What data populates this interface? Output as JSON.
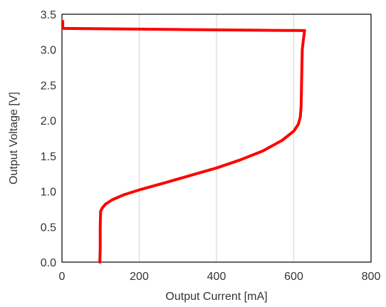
{
  "chart_data": {
    "type": "line",
    "title": "",
    "xlabel": "Output Current [mA]",
    "ylabel": "Output Voltage [V]",
    "xlim": [
      0,
      800
    ],
    "ylim": [
      0,
      3.5
    ],
    "x_ticks": [
      0,
      200,
      400,
      600,
      800
    ],
    "y_ticks": [
      0.0,
      0.5,
      1.0,
      1.5,
      2.0,
      2.5,
      3.0,
      3.5
    ],
    "x_tick_labels": [
      "0",
      "200",
      "400",
      "600",
      "800"
    ],
    "y_tick_labels": [
      "0.0",
      "0.5",
      "1.0",
      "1.5",
      "2.0",
      "2.5",
      "3.0",
      "3.5"
    ],
    "grid": "vertical",
    "legend": "none",
    "series": [
      {
        "color": "#ff0000",
        "points": [
          [
            2,
            3.4
          ],
          [
            2,
            3.3
          ],
          [
            100,
            3.295
          ],
          [
            300,
            3.285
          ],
          [
            500,
            3.275
          ],
          [
            628,
            3.27
          ],
          [
            625,
            3.15
          ],
          [
            622,
            3.0
          ],
          [
            620,
            2.5
          ],
          [
            619,
            2.2
          ],
          [
            617,
            2.05
          ],
          [
            612,
            1.95
          ],
          [
            600,
            1.85
          ],
          [
            570,
            1.72
          ],
          [
            520,
            1.57
          ],
          [
            460,
            1.44
          ],
          [
            400,
            1.33
          ],
          [
            330,
            1.22
          ],
          [
            260,
            1.11
          ],
          [
            200,
            1.02
          ],
          [
            160,
            0.95
          ],
          [
            130,
            0.88
          ],
          [
            113,
            0.82
          ],
          [
            105,
            0.77
          ],
          [
            100,
            0.72
          ],
          [
            99,
            0.5
          ],
          [
            99,
            0.2
          ],
          [
            98,
            0.0
          ]
        ]
      }
    ]
  }
}
